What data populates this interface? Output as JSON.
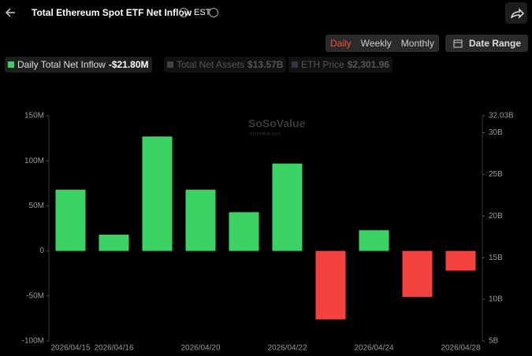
{
  "header": {
    "title": "Total Ethereum Spot ETF Net Inflow",
    "timezone": "EST"
  },
  "tabs": [
    "Daily",
    "Weekly",
    "Monthly"
  ],
  "date_range": "Date Range",
  "watermark": {
    "name": "SoSoValue",
    "site": "sosovalue.com"
  },
  "chart_data": {
    "type": "bar",
    "categories": [
      "2026/04/15",
      "2026/04/16",
      null,
      "2026/04/20",
      null,
      "2026/04/22",
      null,
      "2026/04/24",
      null,
      "2026/04/28"
    ],
    "series": [
      {
        "name": "Daily Total Net Inflow",
        "legend_value": "-$21.80M",
        "color": "#3ad364",
        "negative_color": "#f4433f",
        "values": [
          68,
          18,
          127,
          68,
          43,
          97,
          -76,
          23,
          -51,
          -21.8
        ]
      }
    ],
    "inactive_legend": [
      {
        "name": "Total Net Assets",
        "value": "$13.57B"
      },
      {
        "name": "ETH Price",
        "value": "$2,301.96"
      }
    ],
    "ylim": [
      -100,
      150
    ],
    "yticks": [
      {
        "value": -100,
        "label": "-100M"
      },
      {
        "value": -50,
        "label": "-50M"
      },
      0,
      {
        "value": 50,
        "label": "50M"
      },
      {
        "value": 100,
        "label": "100M"
      },
      {
        "value": 150,
        "label": "150M"
      }
    ],
    "y2lim": [
      5,
      32.03
    ],
    "y2ticks": [
      {
        "value": 5,
        "label": "5B"
      },
      {
        "value": 10,
        "label": "10B"
      },
      {
        "value": 15,
        "label": "15B"
      },
      {
        "value": 20,
        "label": "20B"
      },
      {
        "value": 25,
        "label": "25B"
      },
      {
        "value": 30,
        "label": "30B"
      },
      {
        "value": 32.03,
        "label": "32.03B"
      }
    ]
  }
}
